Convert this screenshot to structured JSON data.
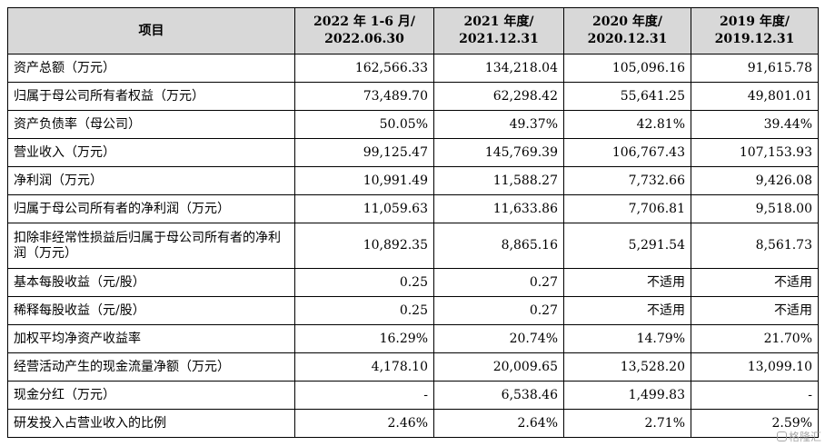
{
  "table": {
    "headers": [
      "项目",
      "2022 年 1-6 月/\n2022.06.30",
      "2021 年度/\n2021.12.31",
      "2020 年度/\n2020.12.31",
      "2019 年度/\n2019.12.31"
    ],
    "rows": [
      {
        "label": "资产总额（万元）",
        "values": [
          "162,566.33",
          "134,218.04",
          "105,096.16",
          "91,615.78"
        ]
      },
      {
        "label": "归属于母公司所有者权益（万元）",
        "values": [
          "73,489.70",
          "62,298.42",
          "55,641.25",
          "49,801.01"
        ]
      },
      {
        "label": "资产负债率（母公司）",
        "values": [
          "50.05%",
          "49.37%",
          "42.81%",
          "39.44%"
        ]
      },
      {
        "label": "营业收入（万元）",
        "values": [
          "99,125.47",
          "145,769.39",
          "106,767.43",
          "107,153.93"
        ]
      },
      {
        "label": "净利润（万元）",
        "values": [
          "10,991.49",
          "11,588.27",
          "7,732.66",
          "9,426.08"
        ]
      },
      {
        "label": "归属于母公司所有者的净利润（万元）",
        "values": [
          "11,059.63",
          "11,633.86",
          "7,706.81",
          "9,518.00"
        ]
      },
      {
        "label": "扣除非经常性损益后归属于母公司所有者的净利润（万元）",
        "values": [
          "10,892.35",
          "8,865.16",
          "5,291.54",
          "8,561.73"
        ],
        "tall": true
      },
      {
        "label": "基本每股收益（元/股）",
        "values": [
          "0.25",
          "0.27",
          "不适用",
          "不适用"
        ]
      },
      {
        "label": "稀释每股收益（元/股）",
        "values": [
          "0.25",
          "0.27",
          "不适用",
          "不适用"
        ]
      },
      {
        "label": "加权平均净资产收益率",
        "values": [
          "16.29%",
          "20.74%",
          "14.79%",
          "21.70%"
        ]
      },
      {
        "label": "经营活动产生的现金流量净额（万元）",
        "values": [
          "4,178.10",
          "20,009.65",
          "13,528.20",
          "13,099.10"
        ]
      },
      {
        "label": "现金分红（万元）",
        "values": [
          "-",
          "6,538.46",
          "1,499.83",
          "-"
        ]
      },
      {
        "label": "研发投入占营业收入的比例",
        "values": [
          "2.46%",
          "2.64%",
          "2.71%",
          "2.59%"
        ]
      }
    ]
  },
  "watermark": {
    "text": "格隆汇",
    "icon": "logo-icon"
  }
}
